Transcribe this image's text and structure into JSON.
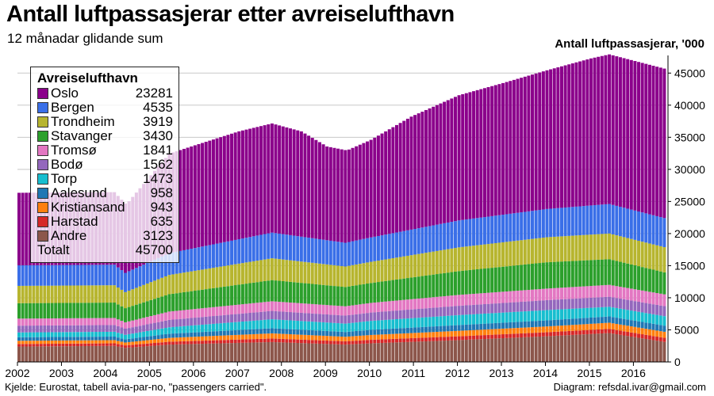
{
  "title": "Antall luftpassasjerar etter avreiselufthavn",
  "subtitle": "12 månadar glidande sum",
  "source": "Kjelde: Eurostat, tabell avia-par-no, \"passengers carried\".",
  "credit": "Diagram: refsdal.ivar@gmail.com",
  "chart_data": {
    "type": "bar",
    "stacked": true,
    "ylabel": "Antall luftpassasjerar, '000",
    "y_axis_position": "right",
    "ylim": [
      0,
      47500
    ],
    "yticks": [
      0,
      5000,
      10000,
      15000,
      20000,
      25000,
      30000,
      35000,
      40000,
      45000
    ],
    "x_range": [
      "2002-01",
      "2016-09"
    ],
    "x_ticks": [
      "2002",
      "2003",
      "2004",
      "2005",
      "2006",
      "2007",
      "2008",
      "2009",
      "2010",
      "2011",
      "2012",
      "2013",
      "2014",
      "2015",
      "2016"
    ],
    "grid": true,
    "legend_position": "top-left",
    "legend_title": "Avreiselufthavn",
    "legend_total_label": "Totalt",
    "legend_total_value": "45700",
    "series": [
      {
        "name": "Oslo",
        "latest": "23281",
        "color": "#8b008b",
        "points": [
          [
            "2002-01",
            11300
          ],
          [
            "2004-03",
            11300
          ],
          [
            "2004-06",
            10800
          ],
          [
            "2004-07",
            10900
          ],
          [
            "2005-06",
            15500
          ],
          [
            "2006-01",
            16000
          ],
          [
            "2007-01",
            16800
          ],
          [
            "2007-10",
            17000
          ],
          [
            "2008-06",
            16400
          ],
          [
            "2009-01",
            14600
          ],
          [
            "2009-07",
            14400
          ],
          [
            "2010-01",
            15200
          ],
          [
            "2010-12",
            17600
          ],
          [
            "2012-01",
            19500
          ],
          [
            "2013-01",
            20500
          ],
          [
            "2014-01",
            21600
          ],
          [
            "2015-01",
            22900
          ],
          [
            "2015-06",
            23300
          ],
          [
            "2016-09",
            23281
          ]
        ]
      },
      {
        "name": "Bergen",
        "latest": "4535",
        "color": "#3a6fe8",
        "points": [
          [
            "2002-01",
            3200
          ],
          [
            "2004-03",
            3200
          ],
          [
            "2004-06",
            3000
          ],
          [
            "2005-06",
            3400
          ],
          [
            "2007-10",
            4000
          ],
          [
            "2009-06",
            3700
          ],
          [
            "2010-01",
            3800
          ],
          [
            "2012-01",
            4200
          ],
          [
            "2014-01",
            4400
          ],
          [
            "2015-06",
            4600
          ],
          [
            "2016-09",
            4535
          ]
        ]
      },
      {
        "name": "Trondheim",
        "latest": "3919",
        "color": "#b7b52f",
        "points": [
          [
            "2002-01",
            2700
          ],
          [
            "2004-03",
            2700
          ],
          [
            "2004-06",
            2500
          ],
          [
            "2005-06",
            3000
          ],
          [
            "2007-10",
            3400
          ],
          [
            "2009-06",
            3200
          ],
          [
            "2010-01",
            3300
          ],
          [
            "2012-01",
            3700
          ],
          [
            "2014-01",
            3900
          ],
          [
            "2015-06",
            4000
          ],
          [
            "2016-09",
            3919
          ]
        ]
      },
      {
        "name": "Stavanger",
        "latest": "3430",
        "color": "#2ca02c",
        "points": [
          [
            "2002-01",
            2400
          ],
          [
            "2004-03",
            2400
          ],
          [
            "2004-06",
            2200
          ],
          [
            "2005-06",
            2700
          ],
          [
            "2007-10",
            3300
          ],
          [
            "2009-06",
            3000
          ],
          [
            "2010-01",
            3100
          ],
          [
            "2012-01",
            3700
          ],
          [
            "2014-01",
            4100
          ],
          [
            "2015-06",
            4000
          ],
          [
            "2016-09",
            3430
          ]
        ]
      },
      {
        "name": "Tromsø",
        "latest": "1841",
        "color": "#e377c2",
        "points": [
          [
            "2002-01",
            1100
          ],
          [
            "2004-03",
            1100
          ],
          [
            "2004-06",
            1000
          ],
          [
            "2005-06",
            1300
          ],
          [
            "2007-10",
            1500
          ],
          [
            "2009-06",
            1450
          ],
          [
            "2010-01",
            1500
          ],
          [
            "2012-01",
            1700
          ],
          [
            "2014-01",
            1800
          ],
          [
            "2015-06",
            1850
          ],
          [
            "2016-09",
            1841
          ]
        ]
      },
      {
        "name": "Bodø",
        "latest": "1562",
        "color": "#9467bd",
        "points": [
          [
            "2002-01",
            1050
          ],
          [
            "2004-03",
            1050
          ],
          [
            "2004-06",
            950
          ],
          [
            "2005-06",
            1150
          ],
          [
            "2007-10",
            1300
          ],
          [
            "2009-06",
            1250
          ],
          [
            "2010-01",
            1300
          ],
          [
            "2012-01",
            1450
          ],
          [
            "2014-01",
            1550
          ],
          [
            "2015-06",
            1570
          ],
          [
            "2016-09",
            1562
          ]
        ]
      },
      {
        "name": "Torp",
        "latest": "1473",
        "color": "#17becf",
        "points": [
          [
            "2002-01",
            750
          ],
          [
            "2004-03",
            750
          ],
          [
            "2004-06",
            700
          ],
          [
            "2005-06",
            1000
          ],
          [
            "2007-10",
            1400
          ],
          [
            "2009-06",
            1300
          ],
          [
            "2010-01",
            1400
          ],
          [
            "2012-01",
            1550
          ],
          [
            "2014-01",
            1600
          ],
          [
            "2015-06",
            1500
          ],
          [
            "2016-09",
            1473
          ]
        ]
      },
      {
        "name": "Aalesund",
        "latest": "958",
        "color": "#1f77b4",
        "points": [
          [
            "2002-01",
            550
          ],
          [
            "2004-03",
            550
          ],
          [
            "2004-06",
            500
          ],
          [
            "2005-06",
            650
          ],
          [
            "2007-10",
            800
          ],
          [
            "2009-06",
            750
          ],
          [
            "2010-01",
            800
          ],
          [
            "2012-01",
            900
          ],
          [
            "2014-01",
            950
          ],
          [
            "2015-06",
            980
          ],
          [
            "2016-09",
            958
          ]
        ]
      },
      {
        "name": "Kristiansand",
        "latest": "943",
        "color": "#ff7f0e",
        "points": [
          [
            "2002-01",
            500
          ],
          [
            "2004-03",
            500
          ],
          [
            "2004-06",
            450
          ],
          [
            "2005-06",
            600
          ],
          [
            "2007-10",
            800
          ],
          [
            "2009-06",
            700
          ],
          [
            "2010-01",
            750
          ],
          [
            "2012-01",
            850
          ],
          [
            "2014-01",
            900
          ],
          [
            "2015-06",
            960
          ],
          [
            "2016-09",
            943
          ]
        ]
      },
      {
        "name": "Harstad",
        "latest": "635",
        "color": "#d62728",
        "points": [
          [
            "2002-01",
            400
          ],
          [
            "2004-03",
            400
          ],
          [
            "2004-06",
            380
          ],
          [
            "2005-06",
            450
          ],
          [
            "2007-10",
            550
          ],
          [
            "2009-06",
            520
          ],
          [
            "2010-01",
            550
          ],
          [
            "2012-01",
            600
          ],
          [
            "2014-01",
            630
          ],
          [
            "2015-06",
            650
          ],
          [
            "2016-09",
            635
          ]
        ]
      },
      {
        "name": "Andre",
        "latest": "3123",
        "color": "#8c564b",
        "points": [
          [
            "2002-01",
            2400
          ],
          [
            "2004-03",
            2500
          ],
          [
            "2004-06",
            2200
          ],
          [
            "2005-06",
            2700
          ],
          [
            "2007-10",
            3100
          ],
          [
            "2009-06",
            2700
          ],
          [
            "2010-01",
            2900
          ],
          [
            "2012-01",
            3400
          ],
          [
            "2014-01",
            4000
          ],
          [
            "2015-06",
            4500
          ],
          [
            "2016-09",
            3123
          ]
        ]
      }
    ]
  }
}
